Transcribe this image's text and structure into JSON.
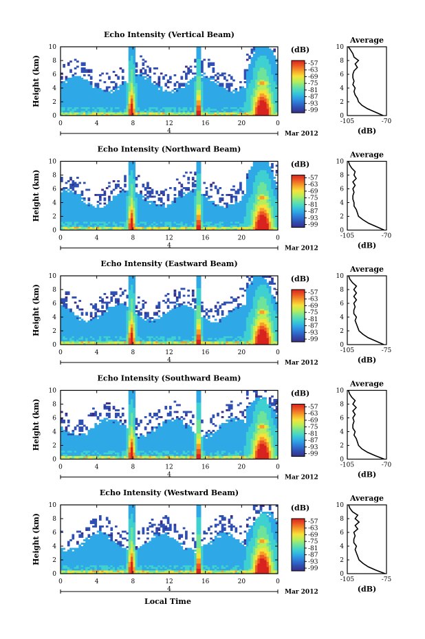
{
  "figure": {
    "xlabel": "Local Time",
    "month_label": "Mar 2012",
    "date_marker": "4",
    "colorbar_unit": "(dB)",
    "avg_xlabel": "(dB)",
    "colors": {
      "background_axes": "#ffffff",
      "line": "#000000",
      "colormap": [
        "#3a2e86",
        "#2f4fb2",
        "#2f79d6",
        "#2fa9e6",
        "#3fd0d0",
        "#6fe39a",
        "#b8ee5a",
        "#f7e23a",
        "#f6a02a",
        "#ec5a24",
        "#d8231e"
      ]
    }
  },
  "panels": [
    {
      "title": "Echo Intensity (Vertical Beam)",
      "avg_title": "Average",
      "ylabel": "Height (km)",
      "cb_ticks": [
        "-57",
        "-63",
        "-69",
        "-75",
        "-81",
        "-87",
        "-93",
        "-99"
      ],
      "avg_xticks": [
        "-105",
        "-70"
      ],
      "avg_profile": {
        "xlim": [
          -105,
          -70
        ],
        "heights": [
          0,
          0.5,
          1,
          1.5,
          2,
          2.5,
          3,
          3.5,
          4,
          4.5,
          5,
          5.5,
          6,
          6.5,
          7,
          7.5,
          8,
          8.5,
          9,
          9.5,
          10
        ],
        "db": [
          -73,
          -80,
          -87,
          -92,
          -95,
          -96,
          -98,
          -99,
          -98,
          -100,
          -99,
          -100,
          -100,
          -99,
          -96,
          -98,
          -95,
          -99,
          -100,
          -102,
          -104
        ]
      }
    },
    {
      "title": "Echo Intensity (Northward Beam)",
      "avg_title": "Average",
      "ylabel": "Height (km)",
      "cb_ticks": [
        "-57",
        "-63",
        "-69",
        "-75",
        "-81",
        "-87",
        "-93",
        "-99"
      ],
      "avg_xticks": [
        "-105",
        "-70"
      ],
      "avg_profile": {
        "xlim": [
          -105,
          -70
        ],
        "heights": [
          0,
          0.5,
          1,
          1.5,
          2,
          2.5,
          3,
          3.5,
          4,
          4.5,
          5,
          5.5,
          6,
          6.5,
          7,
          7.5,
          8,
          8.5,
          9,
          9.5,
          10
        ],
        "db": [
          -72,
          -79,
          -86,
          -91,
          -95,
          -96,
          -97,
          -99,
          -99,
          -100,
          -100,
          -99,
          -100,
          -98,
          -100,
          -97,
          -99,
          -98,
          -101,
          -103,
          -104
        ]
      }
    },
    {
      "title": "Echo Intensity (Eastward Beam)",
      "avg_title": "Average",
      "ylabel": "Height (km)",
      "cb_ticks": [
        "-57",
        "-63",
        "-69",
        "-75",
        "-81",
        "-87",
        "-93",
        "-99"
      ],
      "avg_xticks": [
        "-105",
        "-75"
      ],
      "avg_profile": {
        "xlim": [
          -105,
          -75
        ],
        "heights": [
          0,
          0.5,
          1,
          1.5,
          2,
          2.5,
          3,
          3.5,
          4,
          4.5,
          5,
          5.5,
          6,
          6.5,
          7,
          7.5,
          8,
          8.5,
          9,
          9.5,
          10
        ],
        "db": [
          -77,
          -83,
          -89,
          -93,
          -96,
          -97,
          -98,
          -99,
          -98,
          -100,
          -100,
          -99,
          -100,
          -98,
          -100,
          -98,
          -100,
          -98,
          -101,
          -103,
          -104
        ]
      }
    },
    {
      "title": "Echo Intensity (Southward Beam)",
      "avg_title": "Average",
      "ylabel": "Height (km)",
      "cb_ticks": [
        "-57",
        "-63",
        "-69",
        "-75",
        "-81",
        "-87",
        "-93",
        "-99"
      ],
      "avg_xticks": [
        "-105",
        "-70"
      ],
      "avg_profile": {
        "xlim": [
          -105,
          -70
        ],
        "heights": [
          0,
          0.5,
          1,
          1.5,
          2,
          2.5,
          3,
          3.5,
          4,
          4.5,
          5,
          5.5,
          6,
          6.5,
          7,
          7.5,
          8,
          8.5,
          9,
          9.5,
          10
        ],
        "db": [
          -72,
          -80,
          -87,
          -92,
          -95,
          -96,
          -97,
          -99,
          -98,
          -100,
          -100,
          -99,
          -100,
          -98,
          -100,
          -97,
          -100,
          -98,
          -101,
          -103,
          -104
        ]
      }
    },
    {
      "title": "Echo Intensity (Westward Beam)",
      "avg_title": "Average",
      "ylabel": "Height (km)",
      "cb_ticks": [
        "-57",
        "-63",
        "-69",
        "-75",
        "-81",
        "-87",
        "-93",
        "-99"
      ],
      "avg_xticks": [
        "-105",
        "-75"
      ],
      "avg_profile": {
        "xlim": [
          -105,
          -75
        ],
        "heights": [
          0,
          0.5,
          1,
          1.5,
          2,
          2.5,
          3,
          3.5,
          4,
          4.5,
          5,
          5.5,
          6,
          6.5,
          7,
          7.5,
          8,
          8.5,
          9,
          9.5,
          10
        ],
        "db": [
          -76,
          -83,
          -89,
          -93,
          -96,
          -97,
          -98,
          -99,
          -98,
          -100,
          -100,
          -99,
          -100,
          -97,
          -99,
          -96,
          -99,
          -97,
          -101,
          -103,
          -104
        ]
      }
    }
  ],
  "chart_data": [
    {
      "type": "heatmap",
      "title": "Echo Intensity (Vertical Beam)",
      "xlabel": "Local Time",
      "ylabel": "Height (km)",
      "xlim": [
        0,
        24
      ],
      "ylim": [
        0,
        10
      ],
      "xticks": [
        "0",
        "4",
        "8",
        "12",
        "16",
        "20",
        "0"
      ],
      "yticks": [
        "0",
        "2",
        "4",
        "6",
        "8",
        "10"
      ],
      "colorbar": {
        "label": "(dB)",
        "range": [
          -99,
          -57
        ]
      },
      "features": {
        "precip_columns_hours": [
          [
            7.7,
            8.0
          ],
          [
            15.1,
            15.4
          ],
          [
            21.7,
            23.0
          ]
        ],
        "cloud_top_km": 5.0,
        "bright_band_km": 4.7
      }
    },
    {
      "type": "heatmap",
      "title": "Echo Intensity (Northward Beam)",
      "xlabel": "Local Time",
      "ylabel": "Height (km)",
      "xlim": [
        0,
        24
      ],
      "ylim": [
        0,
        10
      ],
      "xticks": [
        "0",
        "4",
        "8",
        "12",
        "16",
        "20",
        "0"
      ],
      "yticks": [
        "0",
        "2",
        "4",
        "6",
        "8",
        "10"
      ],
      "colorbar": {
        "label": "(dB)",
        "range": [
          -99,
          -57
        ]
      }
    },
    {
      "type": "heatmap",
      "title": "Echo Intensity (Eastward Beam)",
      "xlabel": "Local Time",
      "ylabel": "Height (km)",
      "xlim": [
        0,
        24
      ],
      "ylim": [
        0,
        10
      ],
      "xticks": [
        "0",
        "4",
        "8",
        "12",
        "16",
        "20",
        "0"
      ],
      "yticks": [
        "0",
        "2",
        "4",
        "6",
        "8",
        "10"
      ],
      "colorbar": {
        "label": "(dB)",
        "range": [
          -99,
          -57
        ]
      }
    },
    {
      "type": "heatmap",
      "title": "Echo Intensity (Southward Beam)",
      "xlabel": "Local Time",
      "ylabel": "Height (km)",
      "xlim": [
        0,
        24
      ],
      "ylim": [
        0,
        10
      ],
      "xticks": [
        "0",
        "4",
        "8",
        "12",
        "16",
        "20",
        "0"
      ],
      "yticks": [
        "0",
        "2",
        "4",
        "6",
        "8",
        "10"
      ],
      "colorbar": {
        "label": "(dB)",
        "range": [
          -99,
          -57
        ]
      }
    },
    {
      "type": "heatmap",
      "title": "Echo Intensity (Westward Beam)",
      "xlabel": "Local Time",
      "ylabel": "Height (km)",
      "xlim": [
        0,
        24
      ],
      "ylim": [
        0,
        10
      ],
      "xticks": [
        "0",
        "4",
        "8",
        "12",
        "16",
        "20",
        "0"
      ],
      "yticks": [
        "0",
        "2",
        "4",
        "6",
        "8",
        "10"
      ],
      "colorbar": {
        "label": "(dB)",
        "range": [
          -99,
          -57
        ]
      }
    }
  ]
}
